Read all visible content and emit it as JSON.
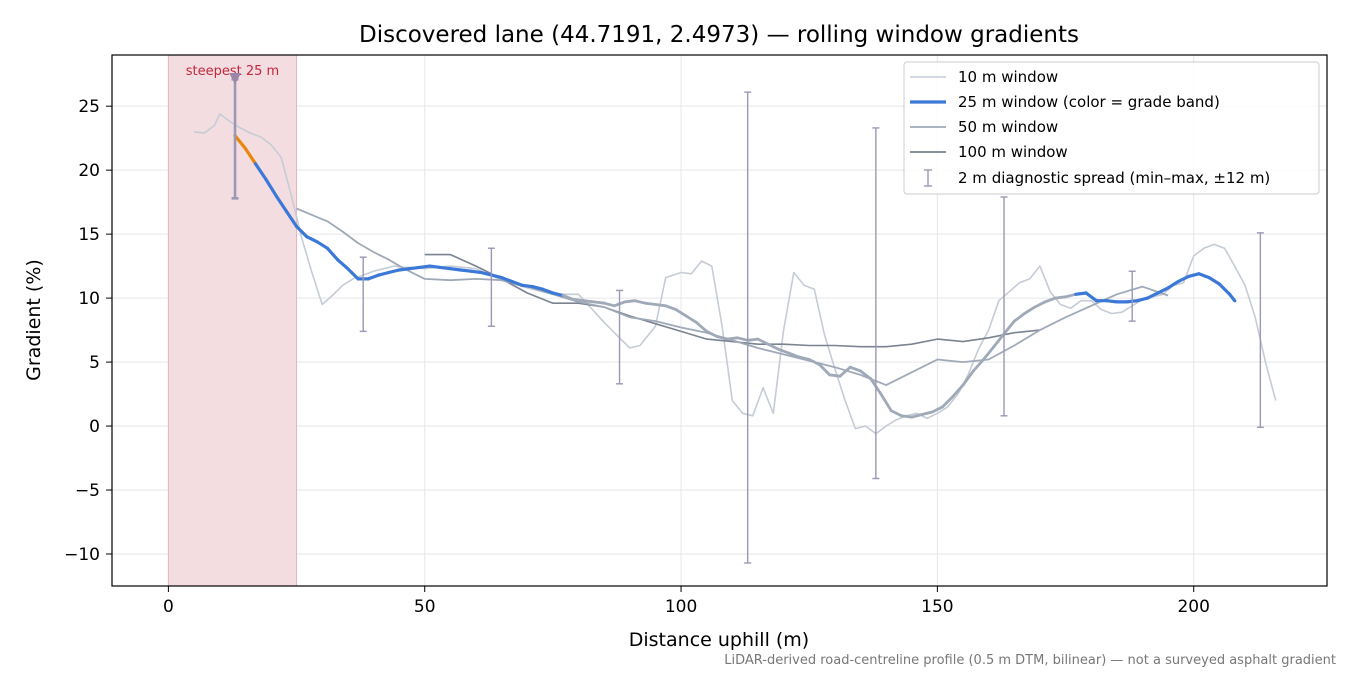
{
  "chart_data": {
    "type": "line",
    "title": "Discovered lane (44.7191, 2.4973) — rolling window gradients",
    "xlabel": "Distance uphill (m)",
    "ylabel": "Gradient (%)",
    "xlim": [
      -11,
      226
    ],
    "ylim": [
      -12.5,
      29
    ],
    "x_ticks": [
      0,
      50,
      100,
      150,
      200
    ],
    "y_ticks": [
      -10,
      -5,
      0,
      5,
      10,
      15,
      20,
      25
    ],
    "grid": true,
    "legend_position": "top-right",
    "footnote": "LiDAR-derived road-centreline profile (0.5 m DTM, bilinear) — not a surveyed asphalt gradient",
    "highlight": {
      "label": "steepest 25 m",
      "x_range": [
        0,
        25
      ],
      "marker_x": 13,
      "marker_y": 27.2,
      "color": "#f4dde0"
    },
    "colors": {
      "w10": "#c5ccd6",
      "w25": "#3b78d8",
      "w25_steep": "#e8870c",
      "w50": "#9fa9b8",
      "w100": "#7a8390",
      "errorbar": "#9b97b5",
      "highlight_text": "#c0283c"
    },
    "legend": [
      "10 m window",
      "25 m window (color = grade band)",
      "50 m window",
      "100 m window",
      "2 m diagnostic spread (min–max, ±12 m)"
    ],
    "series": [
      {
        "name": "10 m window",
        "x": [
          5,
          7,
          9,
          10,
          12,
          14,
          16,
          18,
          20,
          22,
          24,
          26,
          28,
          30,
          32,
          34,
          36,
          38,
          40,
          42,
          44,
          46,
          48,
          50,
          55,
          60,
          65,
          70,
          75,
          80,
          85,
          88,
          90,
          92,
          95,
          97,
          100,
          102,
          104,
          106,
          108,
          110,
          112,
          114,
          116,
          118,
          120,
          122,
          124,
          126,
          128,
          130,
          132,
          134,
          136,
          138,
          140,
          142,
          144,
          146,
          148,
          150,
          152,
          154,
          156,
          158,
          160,
          162,
          164,
          166,
          168,
          170,
          172,
          174,
          176,
          178,
          180,
          182,
          184,
          186,
          188,
          190,
          192,
          194,
          196,
          198,
          200,
          202,
          204,
          206,
          208,
          210,
          212,
          214,
          216
        ],
        "y": [
          23,
          22.9,
          23.5,
          24.4,
          23.8,
          23.3,
          22.9,
          22.6,
          22,
          21,
          18,
          14.7,
          12,
          9.5,
          10.2,
          11,
          11.5,
          11.8,
          12.1,
          12.3,
          12.5,
          12.4,
          12.4,
          12.3,
          12.5,
          12.3,
          11.4,
          10.8,
          10.3,
          10.3,
          8.1,
          6.9,
          6.1,
          6.3,
          7.8,
          11.6,
          12,
          11.9,
          12.9,
          12.5,
          7.8,
          2,
          1,
          0.8,
          3,
          1,
          7.5,
          12,
          11,
          10.7,
          7.1,
          4.5,
          2,
          -0.2,
          0,
          -0.6,
          0,
          0.5,
          0.8,
          1,
          0.6,
          1,
          1.5,
          2.5,
          4,
          6,
          7.5,
          9.8,
          10.5,
          11.2,
          11.5,
          12.5,
          10.5,
          9.5,
          9.2,
          9.8,
          9.8,
          9.1,
          8.8,
          8.9,
          9.4,
          9.9,
          10.1,
          10.3,
          11,
          11.2,
          13.3,
          13.9,
          14.2,
          13.9,
          12.5,
          11,
          8.5,
          5,
          2
        ]
      },
      {
        "name": "25 m window (color = grade band)",
        "x": [
          13,
          15,
          17,
          19,
          21,
          23,
          25,
          27,
          29,
          31,
          33,
          35,
          37,
          39,
          41,
          43,
          45,
          47,
          49,
          51,
          53,
          55,
          57,
          59,
          61,
          63,
          65,
          67,
          69,
          71,
          73,
          75,
          77,
          79,
          81,
          83,
          85,
          87,
          89,
          91,
          93,
          95,
          97,
          99,
          101,
          103,
          105,
          107,
          109,
          111,
          113,
          115,
          117,
          119,
          121,
          123,
          125,
          127,
          129,
          131,
          133,
          135,
          137,
          139,
          141,
          143,
          145,
          147,
          149,
          151,
          153,
          155,
          157,
          159,
          161,
          163,
          165,
          167,
          169,
          171,
          173,
          175,
          177,
          179,
          181,
          183,
          185,
          187,
          189,
          191,
          193,
          195,
          197,
          199,
          201,
          203,
          205,
          207,
          208
        ],
        "y": [
          22.7,
          21.7,
          20.5,
          19.3,
          18,
          16.8,
          15.6,
          14.8,
          14.4,
          13.9,
          13,
          12.3,
          11.5,
          11.5,
          11.8,
          12,
          12.2,
          12.3,
          12.4,
          12.5,
          12.4,
          12.3,
          12.2,
          12.1,
          12,
          11.8,
          11.6,
          11.3,
          11,
          10.9,
          10.7,
          10.4,
          10.2,
          9.9,
          9.8,
          9.7,
          9.6,
          9.4,
          9.7,
          9.8,
          9.6,
          9.5,
          9.4,
          9.1,
          8.6,
          8.1,
          7.4,
          7,
          6.8,
          6.9,
          6.7,
          6.8,
          6.4,
          6,
          5.7,
          5.4,
          5.2,
          4.8,
          4,
          3.9,
          4.6,
          4.3,
          3.7,
          2.5,
          1.2,
          0.8,
          0.7,
          0.9,
          1.1,
          1.5,
          2.3,
          3.2,
          4.3,
          5.2,
          6.2,
          7.2,
          8.2,
          8.8,
          9.3,
          9.7,
          10,
          10.1,
          10.3,
          10.4,
          9.8,
          9.8,
          9.7,
          9.7,
          9.8,
          10,
          10.4,
          10.8,
          11.3,
          11.7,
          11.9,
          11.6,
          11.1,
          10.3,
          9.8
        ]
      },
      {
        "name": "50 m window",
        "x": [
          25,
          28,
          31,
          34,
          37,
          40,
          43,
          46,
          50,
          55,
          60,
          65,
          70,
          75,
          80,
          85,
          90,
          95,
          100,
          105,
          110,
          115,
          120,
          125,
          130,
          135,
          140,
          145,
          150,
          155,
          160,
          165,
          170,
          175,
          180,
          185,
          190,
          195
        ],
        "y": [
          17,
          16.5,
          16,
          15.2,
          14.3,
          13.6,
          13,
          12.3,
          11.5,
          11.4,
          11.5,
          11.4,
          10.9,
          10.3,
          9.7,
          9.3,
          8.5,
          8.2,
          7.7,
          7.3,
          6.7,
          6.1,
          5.6,
          5.1,
          4.6,
          4,
          3.2,
          4.2,
          5.2,
          5,
          5.2,
          6.3,
          7.5,
          8.5,
          9.4,
          10.3,
          10.9,
          10.2
        ]
      },
      {
        "name": "100 m window",
        "x": [
          50,
          55,
          60,
          65,
          70,
          75,
          80,
          85,
          90,
          95,
          100,
          105,
          110,
          115,
          120,
          125,
          130,
          135,
          140,
          145,
          150,
          155,
          160,
          165,
          170
        ],
        "y": [
          13.4,
          13.4,
          12.5,
          11.5,
          10.4,
          9.6,
          9.6,
          9.3,
          8.6,
          8,
          7.4,
          6.8,
          6.6,
          6.4,
          6.4,
          6.3,
          6.3,
          6.2,
          6.2,
          6.4,
          6.8,
          6.6,
          6.9,
          7.3,
          7.5
        ]
      }
    ],
    "error_bars": [
      {
        "x": 13,
        "y_min": 17.8,
        "y_max": 27.1
      },
      {
        "x": 38,
        "y_min": 7.4,
        "y_max": 13.2
      },
      {
        "x": 63,
        "y_min": 7.8,
        "y_max": 13.9
      },
      {
        "x": 88,
        "y_min": 3.3,
        "y_max": 10.6
      },
      {
        "x": 113,
        "y_min": -10.7,
        "y_max": 26.1
      },
      {
        "x": 138,
        "y_min": -4.1,
        "y_max": 23.3
      },
      {
        "x": 163,
        "y_min": 0.8,
        "y_max": 17.9
      },
      {
        "x": 188,
        "y_min": 8.2,
        "y_max": 12.1
      },
      {
        "x": 213,
        "y_min": -0.1,
        "y_max": 15.1
      }
    ]
  }
}
